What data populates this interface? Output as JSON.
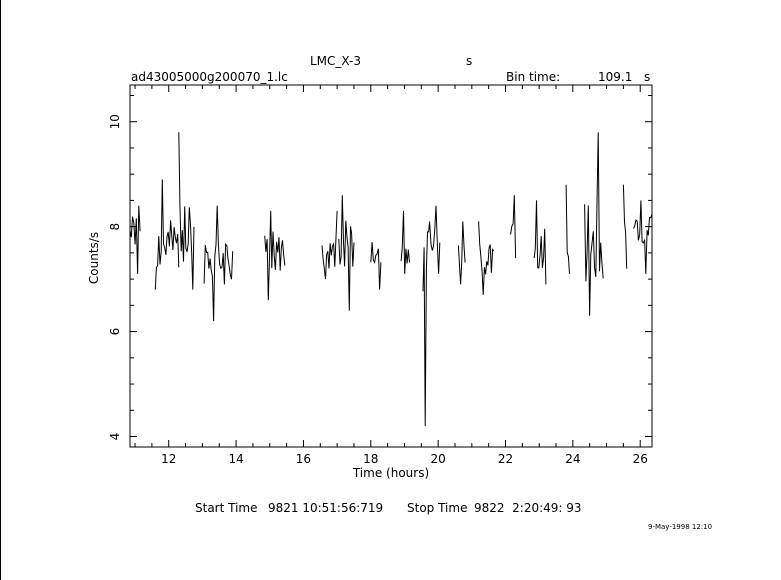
{
  "header": {
    "object_name": "LMC_X-3",
    "object_unit": "s",
    "file_name": "ad43005000g200070_1.lc",
    "bin_time_label": "Bin time:",
    "bin_time_value": "109.1",
    "bin_time_unit": "s"
  },
  "footer": {
    "start_label": "Start Time",
    "start_value": "9821 10:51:56:719",
    "stop_label": "Stop Time",
    "stop_value": "9822  2:20:49: 93",
    "date_stamp": "9-May-1998 12:10"
  },
  "chart_data": {
    "type": "line",
    "title": "LMC_X-3",
    "xlabel": "Time (hours)",
    "ylabel": "Counts/s",
    "xlim": [
      10.85,
      26.35
    ],
    "ylim": [
      3.8,
      10.7
    ],
    "x_ticks": [
      12,
      14,
      16,
      18,
      20,
      22,
      24,
      26
    ],
    "y_ticks": [
      4,
      6,
      8,
      10
    ],
    "grid": false,
    "legend": "none",
    "segments": [
      {
        "x_start": 10.85,
        "x_end": 11.15,
        "y_mean": 7.9,
        "y_min": 7.1,
        "y_max": 8.4,
        "seed": 1
      },
      {
        "x_start": 11.6,
        "x_end": 12.3,
        "y_mean": 7.6,
        "y_min": 6.8,
        "y_max": 8.9,
        "seed": 2
      },
      {
        "x_start": 12.3,
        "x_end": 12.75,
        "y_mean": 7.7,
        "y_min": 6.8,
        "y_max": 9.8,
        "seed": 3
      },
      {
        "x_start": 13.05,
        "x_end": 13.9,
        "y_mean": 7.4,
        "y_min": 6.2,
        "y_max": 8.4,
        "seed": 4
      },
      {
        "x_start": 14.85,
        "x_end": 15.45,
        "y_mean": 7.5,
        "y_min": 6.6,
        "y_max": 8.3,
        "seed": 5
      },
      {
        "x_start": 16.55,
        "x_end": 17.0,
        "y_mean": 7.5,
        "y_min": 7.0,
        "y_max": 8.3,
        "seed": 6
      },
      {
        "x_start": 17.05,
        "x_end": 17.5,
        "y_mean": 7.7,
        "y_min": 6.4,
        "y_max": 8.6,
        "seed": 7
      },
      {
        "x_start": 18.0,
        "x_end": 18.3,
        "y_mean": 7.4,
        "y_min": 6.8,
        "y_max": 8.3,
        "seed": 8
      },
      {
        "x_start": 18.9,
        "x_end": 19.15,
        "y_mean": 7.5,
        "y_min": 7.1,
        "y_max": 8.3,
        "seed": 9
      },
      {
        "x_start": 19.55,
        "x_end": 19.75,
        "y_mean": 7.6,
        "y_min": 4.2,
        "y_max": 8.1,
        "seed": 10
      },
      {
        "x_start": 19.75,
        "x_end": 20.05,
        "y_mean": 7.8,
        "y_min": 7.1,
        "y_max": 8.4,
        "seed": 11
      },
      {
        "x_start": 20.6,
        "x_end": 20.8,
        "y_mean": 7.5,
        "y_min": 6.9,
        "y_max": 8.1,
        "seed": 12
      },
      {
        "x_start": 21.2,
        "x_end": 21.65,
        "y_mean": 7.4,
        "y_min": 6.7,
        "y_max": 8.1,
        "seed": 13
      },
      {
        "x_start": 22.15,
        "x_end": 22.3,
        "y_mean": 7.9,
        "y_min": 7.4,
        "y_max": 8.6,
        "seed": 14
      },
      {
        "x_start": 22.85,
        "x_end": 23.2,
        "y_mean": 7.6,
        "y_min": 6.9,
        "y_max": 8.5,
        "seed": 15
      },
      {
        "x_start": 23.8,
        "x_end": 23.9,
        "y_mean": 7.7,
        "y_min": 7.1,
        "y_max": 8.8,
        "seed": 16
      },
      {
        "x_start": 24.35,
        "x_end": 24.9,
        "y_mean": 7.7,
        "y_min": 6.3,
        "y_max": 9.8,
        "seed": 17
      },
      {
        "x_start": 25.5,
        "x_end": 25.6,
        "y_mean": 7.8,
        "y_min": 7.2,
        "y_max": 8.8,
        "seed": 18
      },
      {
        "x_start": 25.8,
        "x_end": 26.35,
        "y_mean": 7.9,
        "y_min": 7.1,
        "y_max": 8.5,
        "seed": 19
      }
    ]
  }
}
